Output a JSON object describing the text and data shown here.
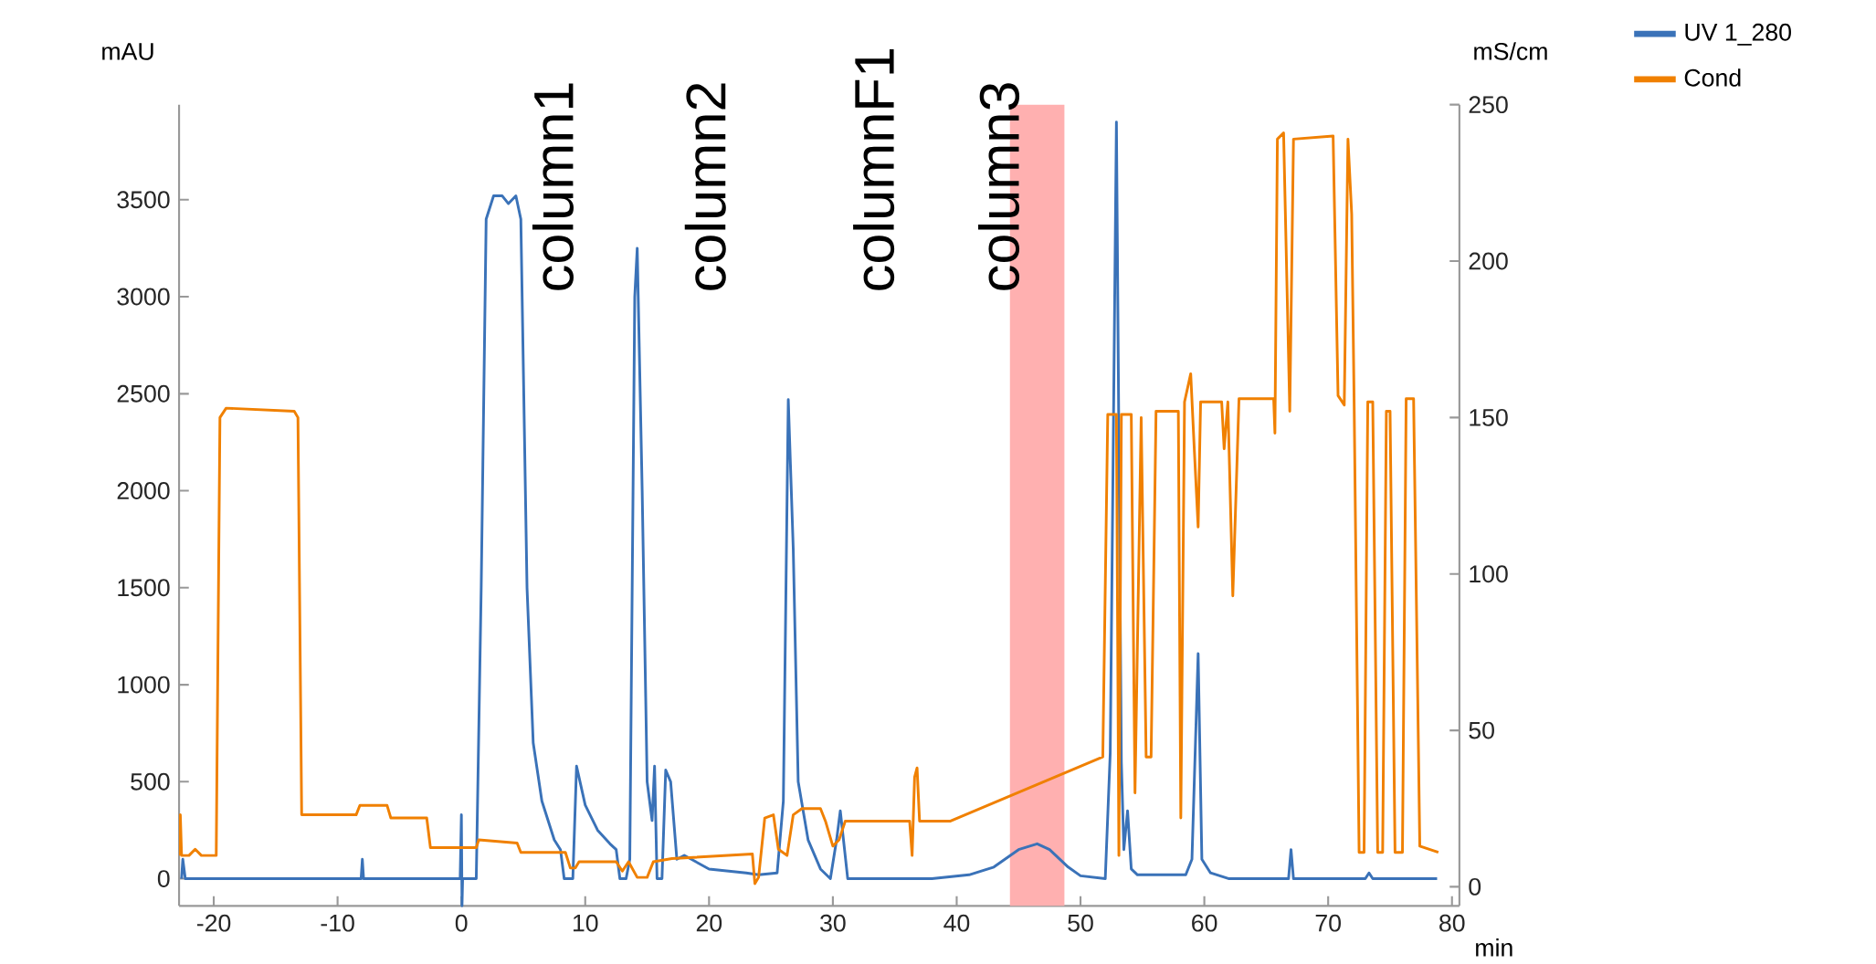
{
  "chart_data": {
    "type": "line",
    "xlabel": "min",
    "ylabel": "mAU",
    "y2label": "mS/cm",
    "xlim": [
      -22.8,
      80.6
    ],
    "xticks": [
      -20,
      -10,
      0,
      10,
      20,
      30,
      40,
      50,
      60,
      70,
      80
    ],
    "ylim": [
      -140,
      3990
    ],
    "yticks": [
      0,
      500,
      1000,
      1500,
      2000,
      2500,
      3000,
      3500
    ],
    "y2lim": [
      -6.1,
      250
    ],
    "y2ticks": [
      0,
      50,
      100,
      150,
      200,
      250
    ],
    "legend": "top right",
    "series": [
      {
        "name": "UV 1_280",
        "color": "#3a72b8",
        "x": [
          -22.6,
          -22.5,
          -22.3,
          -8.1,
          -8.0,
          -7.9,
          -0.1,
          0,
          0.05,
          0.1,
          1.2,
          1.6,
          2.0,
          2.6,
          3.3,
          3.8,
          4.4,
          4.8,
          5.3,
          5.8,
          6.5,
          7.5,
          8,
          8.3,
          9,
          9.3,
          10,
          11,
          12,
          12.5,
          12.8,
          13.3,
          13.6,
          14.0,
          14.2,
          14.6,
          15,
          15.4,
          15.6,
          15.8,
          16.2,
          16.5,
          16.9,
          17.4,
          18,
          20,
          23,
          24,
          25.5,
          26,
          26.4,
          26.8,
          27.2,
          28,
          29,
          29.8,
          30.3,
          30.6,
          31.2,
          33,
          38,
          41,
          43,
          45,
          46.5,
          47.5,
          49,
          50,
          52,
          52.4,
          52.9,
          53.3,
          53.5,
          53.8,
          54.1,
          54.6,
          58.5,
          59,
          59.5,
          59.8,
          60.5,
          62,
          66.8,
          67,
          67.2,
          73,
          73.3,
          73.6,
          78.8
        ],
        "values": [
          0,
          100,
          0,
          0,
          100,
          0,
          0,
          330,
          -140,
          0,
          0,
          1500,
          3400,
          3520,
          3520,
          3480,
          3520,
          3400,
          1500,
          700,
          400,
          200,
          150,
          0,
          0,
          580,
          380,
          250,
          180,
          150,
          0,
          0,
          100,
          3000,
          3250,
          2000,
          500,
          300,
          580,
          0,
          0,
          560,
          500,
          100,
          120,
          50,
          30,
          20,
          30,
          400,
          2470,
          1700,
          500,
          200,
          50,
          0,
          200,
          350,
          0,
          0,
          0,
          20,
          60,
          150,
          180,
          150,
          60,
          15,
          0,
          650,
          3900,
          600,
          150,
          350,
          50,
          20,
          20,
          100,
          1160,
          100,
          30,
          0,
          0,
          150,
          0,
          0,
          30,
          0,
          0
        ]
      },
      {
        "name": "Cond",
        "color": "#f08000",
        "axis": "y2",
        "x": [
          -22.8,
          -22.7,
          -22.6,
          -22,
          -21.5,
          -21,
          -19.8,
          -19.5,
          -19,
          -13.5,
          -13.2,
          -12.9,
          -8.5,
          -8.2,
          -6,
          -5.7,
          -2.8,
          -2.5,
          1.2,
          1.4,
          4.5,
          4.8,
          8.4,
          8.8,
          9.2,
          9.5,
          12.5,
          13,
          13.5,
          14.2,
          15,
          15.5,
          17,
          23.5,
          23.7,
          24,
          24.5,
          25.2,
          25.6,
          26.3,
          26.8,
          27.5,
          29,
          29.4,
          30,
          30.5,
          31,
          36.2,
          36.4,
          36.6,
          36.8,
          37,
          39.5,
          51.8,
          52.2,
          52.9,
          53.1,
          53.3,
          54.1,
          54.4,
          54.9,
          55.3,
          55.7,
          56.1,
          57.9,
          58.1,
          58.4,
          58.9,
          59.2,
          59.5,
          59.7,
          61.4,
          61.6,
          61.9,
          62.3,
          62.8,
          65.6,
          65.7,
          65.9,
          66.4,
          66.9,
          67.2,
          70.4,
          70.8,
          71.3,
          71.6,
          71.9,
          72.1,
          72.5,
          72.9,
          73.2,
          73.6,
          74.0,
          74.4,
          74.7,
          75.0,
          75.4,
          76.0,
          76.3,
          76.9,
          77.4,
          78.9
        ],
        "values": [
          10,
          23,
          10,
          10,
          12,
          10,
          10,
          150,
          153,
          152,
          150,
          23,
          23,
          26,
          26,
          22,
          22,
          12.5,
          12.5,
          15,
          14,
          11,
          11,
          6,
          6,
          8,
          8,
          5,
          8,
          3,
          3,
          8,
          9,
          10.5,
          1,
          3,
          22,
          23,
          12,
          10,
          23,
          25,
          25,
          21,
          13,
          15,
          21,
          21,
          10,
          35,
          38,
          21,
          21,
          41.5,
          151,
          151,
          10,
          151,
          151,
          30,
          150,
          41.5,
          41.5,
          152,
          152,
          22,
          155,
          164,
          139,
          115,
          155,
          155,
          140,
          155,
          93,
          156,
          156,
          145,
          239,
          241,
          152,
          239,
          240,
          157,
          154,
          239,
          215,
          154,
          11,
          11,
          155,
          155,
          11,
          11,
          152,
          152,
          11,
          11,
          156,
          156,
          13,
          11
        ]
      }
    ],
    "bands": [
      {
        "axis": "x",
        "from": 44.3,
        "to": 48.7,
        "color": "#ffb0b0"
      }
    ],
    "annotations": [
      "column1",
      "column2",
      "columnF1",
      "column3"
    ]
  }
}
